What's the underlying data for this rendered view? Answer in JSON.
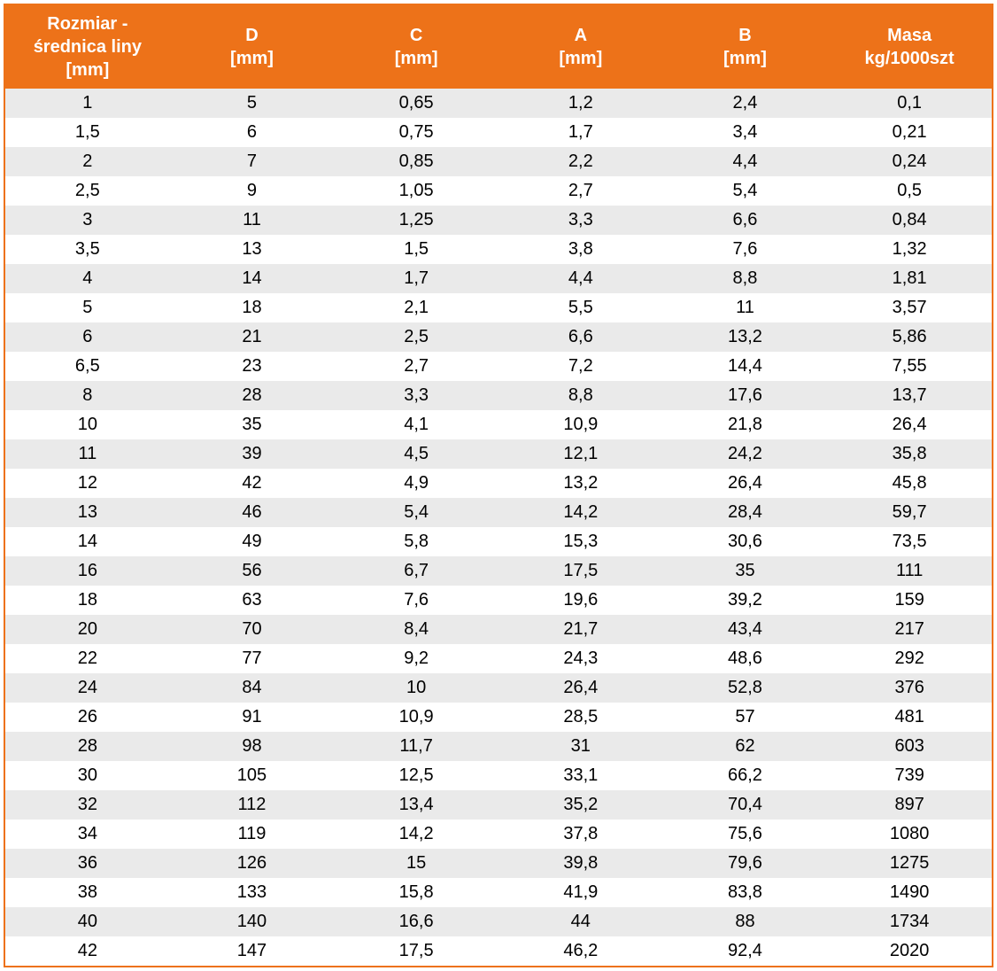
{
  "table": {
    "header_bg": "#ed7219",
    "header_text_color": "#ffffff",
    "row_odd_bg": "#eaeaea",
    "row_even_bg": "#ffffff",
    "cell_text_color": "#000000",
    "border_color": "#ed7219",
    "font_family": "Arial",
    "header_fontsize": 20,
    "cell_fontsize": 20,
    "columns": [
      {
        "label_line1": "Rozmiar -",
        "label_line2": "średnica liny",
        "label_line3": "[mm]"
      },
      {
        "label_line1": "D",
        "label_line2": "[mm]",
        "label_line3": ""
      },
      {
        "label_line1": "C",
        "label_line2": "[mm]",
        "label_line3": ""
      },
      {
        "label_line1": "A",
        "label_line2": "[mm]",
        "label_line3": ""
      },
      {
        "label_line1": "B",
        "label_line2": "[mm]",
        "label_line3": ""
      },
      {
        "label_line1": "Masa",
        "label_line2": "kg/1000szt",
        "label_line3": ""
      }
    ],
    "rows": [
      [
        "1",
        "5",
        "0,65",
        "1,2",
        "2,4",
        "0,1"
      ],
      [
        "1,5",
        "6",
        "0,75",
        "1,7",
        "3,4",
        "0,21"
      ],
      [
        "2",
        "7",
        "0,85",
        "2,2",
        "4,4",
        "0,24"
      ],
      [
        "2,5",
        "9",
        "1,05",
        "2,7",
        "5,4",
        "0,5"
      ],
      [
        "3",
        "11",
        "1,25",
        "3,3",
        "6,6",
        "0,84"
      ],
      [
        "3,5",
        "13",
        "1,5",
        "3,8",
        "7,6",
        "1,32"
      ],
      [
        "4",
        "14",
        "1,7",
        "4,4",
        "8,8",
        "1,81"
      ],
      [
        "5",
        "18",
        "2,1",
        "5,5",
        "11",
        "3,57"
      ],
      [
        "6",
        "21",
        "2,5",
        "6,6",
        "13,2",
        "5,86"
      ],
      [
        "6,5",
        "23",
        "2,7",
        "7,2",
        "14,4",
        "7,55"
      ],
      [
        "8",
        "28",
        "3,3",
        "8,8",
        "17,6",
        "13,7"
      ],
      [
        "10",
        "35",
        "4,1",
        "10,9",
        "21,8",
        "26,4"
      ],
      [
        "11",
        "39",
        "4,5",
        "12,1",
        "24,2",
        "35,8"
      ],
      [
        "12",
        "42",
        "4,9",
        "13,2",
        "26,4",
        "45,8"
      ],
      [
        "13",
        "46",
        "5,4",
        "14,2",
        "28,4",
        "59,7"
      ],
      [
        "14",
        "49",
        "5,8",
        "15,3",
        "30,6",
        "73,5"
      ],
      [
        "16",
        "56",
        "6,7",
        "17,5",
        "35",
        "111"
      ],
      [
        "18",
        "63",
        "7,6",
        "19,6",
        "39,2",
        "159"
      ],
      [
        "20",
        "70",
        "8,4",
        "21,7",
        "43,4",
        "217"
      ],
      [
        "22",
        "77",
        "9,2",
        "24,3",
        "48,6",
        "292"
      ],
      [
        "24",
        "84",
        "10",
        "26,4",
        "52,8",
        "376"
      ],
      [
        "26",
        "91",
        "10,9",
        "28,5",
        "57",
        "481"
      ],
      [
        "28",
        "98",
        "11,7",
        "31",
        "62",
        "603"
      ],
      [
        "30",
        "105",
        "12,5",
        "33,1",
        "66,2",
        "739"
      ],
      [
        "32",
        "112",
        "13,4",
        "35,2",
        "70,4",
        "897"
      ],
      [
        "34",
        "119",
        "14,2",
        "37,8",
        "75,6",
        "1080"
      ],
      [
        "36",
        "126",
        "15",
        "39,8",
        "79,6",
        "1275"
      ],
      [
        "38",
        "133",
        "15,8",
        "41,9",
        "83,8",
        "1490"
      ],
      [
        "40",
        "140",
        "16,6",
        "44",
        "88",
        "1734"
      ],
      [
        "42",
        "147",
        "17,5",
        "46,2",
        "92,4",
        "2020"
      ]
    ]
  }
}
